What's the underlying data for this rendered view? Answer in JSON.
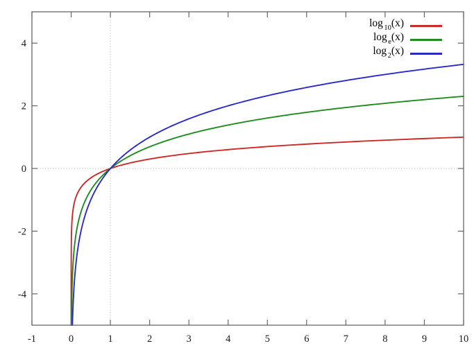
{
  "figure": {
    "background": "#ffffff",
    "axis_color": "#666666",
    "tick_label_color": "#1a1a1a",
    "grid_dot_color": "#b5b5b5"
  },
  "chart_data": {
    "type": "line",
    "title": "",
    "xlabel": "",
    "ylabel": "",
    "xlim": [
      -1,
      10
    ],
    "ylim": [
      -5,
      5
    ],
    "x_ticks": [
      -1,
      0,
      1,
      2,
      3,
      4,
      5,
      6,
      7,
      8,
      9,
      10
    ],
    "y_ticks": [
      -4,
      -2,
      0,
      2,
      4
    ],
    "grid": {
      "vertical_dotted_at_x": 1,
      "horizontal_dotted_at_y": 0,
      "style": "dotted"
    },
    "legend_position": "top-right",
    "series": [
      {
        "name": "log10",
        "label": "log_10(x)",
        "legend": {
          "func": "log",
          "sub": "10",
          "arg": "(x)"
        },
        "base": 10,
        "color": "#cc2a2a",
        "points": [
          [
            0.1,
            -1
          ],
          [
            0.5,
            -0.301
          ],
          [
            1,
            0
          ],
          [
            2,
            0.301
          ],
          [
            3,
            0.477
          ],
          [
            4,
            0.602
          ],
          [
            5,
            0.699
          ],
          [
            6,
            0.778
          ],
          [
            7,
            0.845
          ],
          [
            8,
            0.903
          ],
          [
            9,
            0.954
          ],
          [
            10,
            1
          ]
        ]
      },
      {
        "name": "log_e",
        "label": "log_e(x)",
        "legend": {
          "func": "log",
          "sub": "e",
          "arg": "(x)"
        },
        "base": 2.718281828459045,
        "color": "#1f8c1f",
        "points": [
          [
            0.1,
            -2.303
          ],
          [
            0.5,
            -0.693
          ],
          [
            1,
            0
          ],
          [
            2,
            0.693
          ],
          [
            3,
            1.099
          ],
          [
            4,
            1.386
          ],
          [
            5,
            1.609
          ],
          [
            6,
            1.792
          ],
          [
            7,
            1.946
          ],
          [
            8,
            2.079
          ],
          [
            9,
            2.197
          ],
          [
            10,
            2.303
          ]
        ]
      },
      {
        "name": "log2",
        "label": "log_2(x)",
        "legend": {
          "func": "log",
          "sub": "2",
          "arg": "(x)"
        },
        "base": 2,
        "color": "#2a2ac8",
        "points": [
          [
            0.1,
            -3.322
          ],
          [
            0.5,
            -1
          ],
          [
            1,
            0
          ],
          [
            2,
            1
          ],
          [
            3,
            1.585
          ],
          [
            4,
            2
          ],
          [
            5,
            2.322
          ],
          [
            6,
            2.585
          ],
          [
            7,
            2.807
          ],
          [
            8,
            3
          ],
          [
            9,
            3.17
          ],
          [
            10,
            3.322
          ]
        ]
      }
    ]
  }
}
